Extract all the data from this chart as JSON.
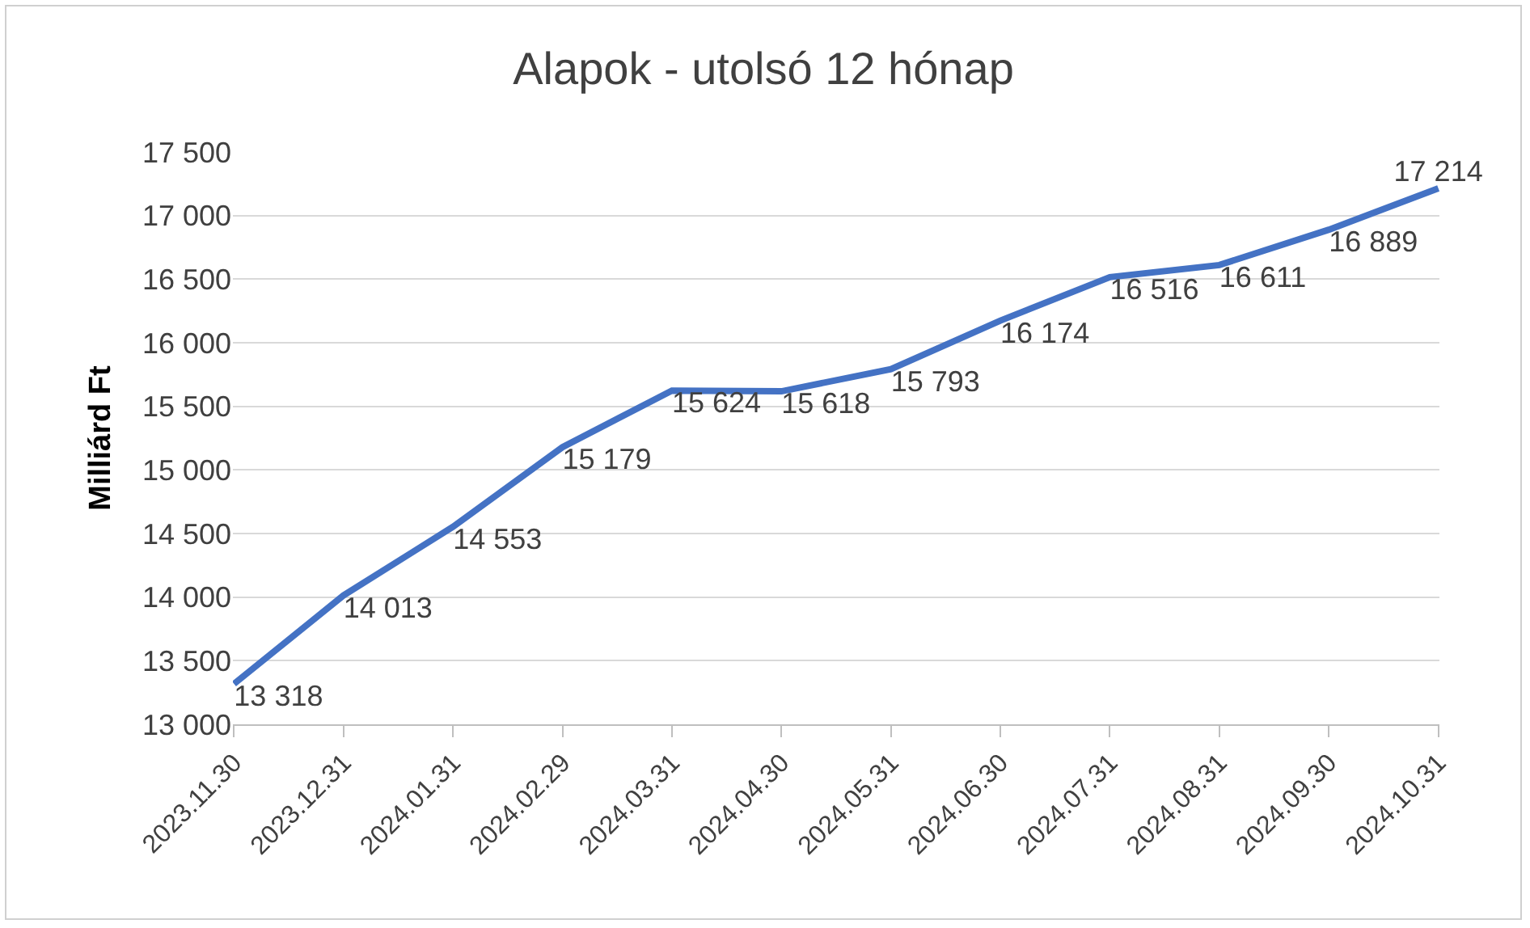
{
  "chart_data": {
    "type": "line",
    "title": "Alapok - utolsó 12 hónap",
    "ylabel": "Milliárd Ft",
    "categories": [
      "2023.11.30",
      "2023.12.31",
      "2024.01.31",
      "2024.02.29",
      "2024.03.31",
      "2024.04.30",
      "2024.05.31",
      "2024.06.30",
      "2024.07.31",
      "2024.08.31",
      "2024.09.30",
      "2024.10.31"
    ],
    "series": [
      {
        "color": "#4472c4",
        "values": [
          13318,
          14013,
          14553,
          15179,
          15624,
          15618,
          15793,
          16174,
          16516,
          16611,
          16889,
          17214
        ],
        "value_labels": [
          "13 318",
          "14 013",
          "14 553",
          "15 179",
          "15 624",
          "15 618",
          "15 793",
          "16 174",
          "16 516",
          "16 611",
          "16 889",
          "17 214"
        ]
      }
    ],
    "ylim": [
      13000,
      17500
    ],
    "yticks": [
      {
        "value": 13000,
        "label": "13 000"
      },
      {
        "value": 13500,
        "label": "13 500"
      },
      {
        "value": 14000,
        "label": "14 000"
      },
      {
        "value": 14500,
        "label": "14 500"
      },
      {
        "value": 15000,
        "label": "15 000"
      },
      {
        "value": 15500,
        "label": "15 500"
      },
      {
        "value": 16000,
        "label": "16 000"
      },
      {
        "value": 16500,
        "label": "16 500"
      },
      {
        "value": 17000,
        "label": "17 000"
      },
      {
        "value": 17500,
        "label": "17 500"
      }
    ],
    "grid": "y",
    "legend": false,
    "marker": "none",
    "line_style": "solid"
  }
}
